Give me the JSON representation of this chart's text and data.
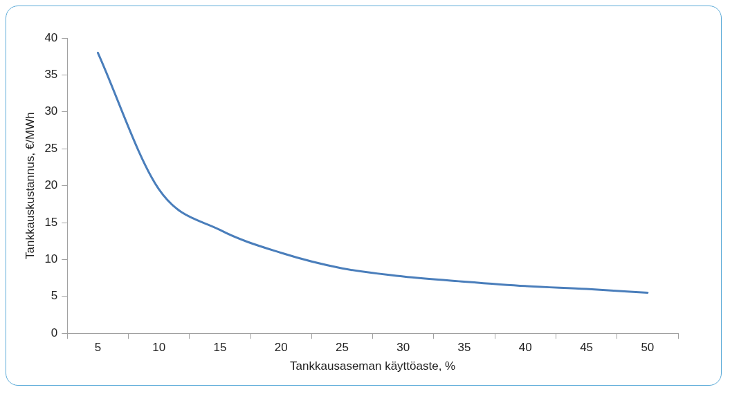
{
  "chart_data": {
    "type": "line",
    "xlabel": "Tankkausaseman käyttöaste, %",
    "ylabel": "Tankkauskustannus, €/MWh",
    "categories": [
      "5",
      "10",
      "15",
      "20",
      "25",
      "30",
      "35",
      "40",
      "45",
      "50"
    ],
    "series": [
      {
        "color": "#4a7ebb",
        "values": [
          38,
          19.5,
          14,
          10.9,
          8.8,
          7.7,
          7,
          6.4,
          6,
          5.5
        ]
      }
    ],
    "ylim": [
      0,
      40
    ],
    "yticks": [
      0,
      5,
      10,
      15,
      20,
      25,
      30,
      35,
      40
    ],
    "grid": false,
    "legend": false,
    "marker": "none",
    "line_style": "solid"
  }
}
